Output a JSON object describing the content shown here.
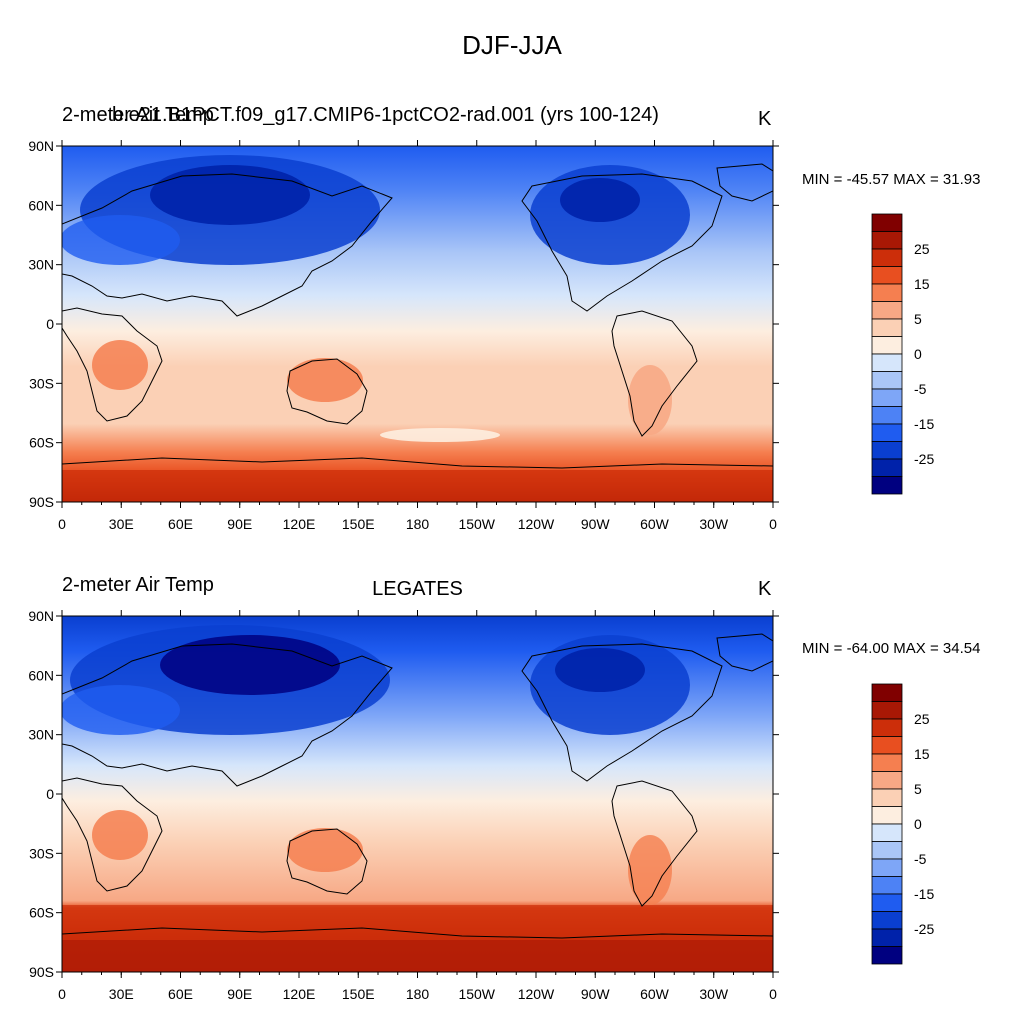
{
  "main_title": "DJF-JJA",
  "colormap": [
    "#000080",
    "#0022aa",
    "#0a3fd0",
    "#1f5cf0",
    "#4d82f5",
    "#7ea6f7",
    "#aac6f7",
    "#d6e6fb",
    "#fdeee0",
    "#fbd0b5",
    "#f7a885",
    "#f57f50",
    "#e84f20",
    "#cc2e0a",
    "#a81805",
    "#800000"
  ],
  "legend_levels": [
    "25",
    "15",
    "5",
    "0",
    "-5",
    "-15",
    "-25"
  ],
  "panels": [
    {
      "left_label": "2-meter Air Temp",
      "overlay_label": "b.e21.B1PCT.f09_g17.CMIP6-1pctCO2-rad.001 (yrs 100-124)",
      "center_label": "",
      "units": "K",
      "minmax": "MIN = -45.57 MAX =  31.93"
    },
    {
      "left_label": "2-meter Air Temp",
      "overlay_label": "",
      "center_label": "LEGATES",
      "units": "K",
      "minmax": "MIN = -64.00 MAX =  34.54"
    }
  ],
  "lat_labels": [
    "90N",
    "60N",
    "30N",
    "0",
    "30S",
    "60S",
    "90S"
  ],
  "lon_labels": [
    "0",
    "30E",
    "60E",
    "90E",
    "120E",
    "150E",
    "180",
    "150W",
    "120W",
    "90W",
    "60W",
    "30W",
    "0"
  ]
}
